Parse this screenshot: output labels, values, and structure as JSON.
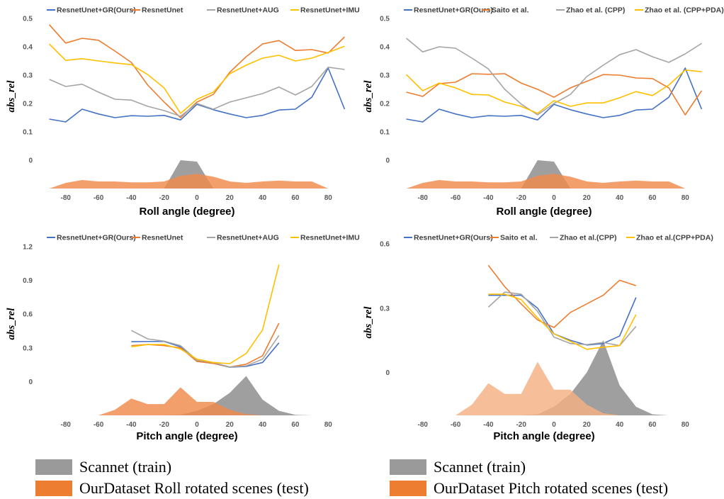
{
  "colors": {
    "blue": "#4472C4",
    "orange": "#ED7D31",
    "gray": "#A5A5A5",
    "yellow": "#FFC000",
    "scannet_fill": "#9a9a9a",
    "ourdata_fill": "#F08A4B",
    "ourdata_fill_light": "#F4B183"
  },
  "bottom_legend": {
    "left": [
      {
        "label": "Scannet (train)",
        "color": "#9a9a9a"
      },
      {
        "label": "OurDataset Roll rotated scenes (test)",
        "color": "#ED7D31"
      }
    ],
    "right": [
      {
        "label": "Scannet (train)",
        "color": "#9a9a9a"
      },
      {
        "label": "OurDataset Pitch rotated scenes (test)",
        "color": "#ED7D31"
      }
    ]
  },
  "chart_data": [
    {
      "type": "line",
      "xlabel": "Roll angle (degree)",
      "ylabel": "abs_rel",
      "xlim": [
        -95,
        95
      ],
      "ylim": [
        -0.1,
        0.5
      ],
      "x_ticks": [
        "-80",
        "-60",
        "-40",
        "-20",
        "0",
        "20",
        "40",
        "60",
        "80"
      ],
      "y_ticks": [
        "0",
        "0.1",
        "0.2",
        "0.3",
        "0.4",
        "0.5"
      ],
      "legend": "top",
      "series": [
        {
          "name": "ResnetUnet+GR(Ours)",
          "color": "#4472C4",
          "x": [
            -90,
            -80,
            -70,
            -60,
            -50,
            -40,
            -30,
            -20,
            -10,
            0,
            10,
            20,
            30,
            40,
            50,
            60,
            70,
            80,
            90
          ],
          "values": [
            0.145,
            0.135,
            0.18,
            0.163,
            0.15,
            0.157,
            0.155,
            0.158,
            0.142,
            0.197,
            0.178,
            0.163,
            0.15,
            0.158,
            0.177,
            0.18,
            0.222,
            0.325,
            0.18
          ]
        },
        {
          "name": "ResnetUnet",
          "color": "#ED7D31",
          "x": [
            -90,
            -80,
            -70,
            -60,
            -50,
            -40,
            -30,
            -20,
            -10,
            0,
            10,
            20,
            30,
            40,
            50,
            60,
            70,
            80,
            90
          ],
          "values": [
            0.478,
            0.413,
            0.43,
            0.423,
            0.385,
            0.345,
            0.265,
            0.205,
            0.15,
            0.205,
            0.232,
            0.31,
            0.365,
            0.41,
            0.422,
            0.387,
            0.39,
            0.378,
            0.435
          ]
        },
        {
          "name": "ResnetUnet+AUG",
          "color": "#A5A5A5",
          "x": [
            -90,
            -80,
            -70,
            -60,
            -50,
            -40,
            -30,
            -20,
            -10,
            0,
            10,
            20,
            30,
            40,
            50,
            60,
            70,
            80,
            90
          ],
          "values": [
            0.285,
            0.26,
            0.268,
            0.24,
            0.215,
            0.212,
            0.19,
            0.175,
            0.155,
            0.2,
            0.18,
            0.205,
            0.22,
            0.235,
            0.258,
            0.23,
            0.26,
            0.328,
            0.32
          ]
        },
        {
          "name": "ResnetUnet+IMU",
          "color": "#FFC000",
          "x": [
            -90,
            -80,
            -70,
            -60,
            -50,
            -40,
            -30,
            -20,
            -10,
            0,
            10,
            20,
            30,
            40,
            50,
            60,
            70,
            80,
            90
          ],
          "values": [
            0.41,
            0.352,
            0.358,
            0.35,
            0.343,
            0.337,
            0.302,
            0.255,
            0.165,
            0.215,
            0.24,
            0.305,
            0.335,
            0.36,
            0.37,
            0.35,
            0.36,
            0.38,
            0.402
          ]
        }
      ],
      "histograms": [
        {
          "name": "Scannet (train)",
          "color": "#9a9a9a",
          "x": [
            -20,
            -10,
            0,
            10
          ],
          "values": [
            0.0,
            0.1,
            0.095,
            0.0
          ]
        },
        {
          "name": "OurDataset Roll rotated scenes (test)",
          "color": "#F08A4B",
          "x": [
            -90,
            -80,
            -70,
            -60,
            -50,
            -40,
            -30,
            -20,
            -10,
            0,
            10,
            20,
            30,
            40,
            50,
            60,
            70,
            80
          ],
          "values": [
            0.0,
            0.02,
            0.03,
            0.025,
            0.025,
            0.022,
            0.022,
            0.025,
            0.045,
            0.052,
            0.042,
            0.025,
            0.02,
            0.025,
            0.028,
            0.025,
            0.025,
            0.0
          ]
        }
      ]
    },
    {
      "type": "line",
      "xlabel": "Roll angle (degree)",
      "ylabel": "abs_rel",
      "xlim": [
        -95,
        95
      ],
      "ylim": [
        -0.1,
        0.5
      ],
      "x_ticks": [
        "-80",
        "-60",
        "-40",
        "-20",
        "0",
        "20",
        "40",
        "60",
        "80"
      ],
      "y_ticks": [
        "0",
        "0.1",
        "0.2",
        "0.3",
        "0.4",
        "0.5"
      ],
      "legend": "top",
      "series": [
        {
          "name": "ResnetUnet+GR(Ours)",
          "color": "#4472C4",
          "x": [
            -90,
            -80,
            -70,
            -60,
            -50,
            -40,
            -30,
            -20,
            -10,
            0,
            10,
            20,
            30,
            40,
            50,
            60,
            70,
            80,
            90
          ],
          "values": [
            0.145,
            0.135,
            0.18,
            0.163,
            0.15,
            0.157,
            0.155,
            0.158,
            0.142,
            0.197,
            0.178,
            0.163,
            0.15,
            0.158,
            0.177,
            0.18,
            0.222,
            0.325,
            0.18
          ]
        },
        {
          "name": "Saito et al.",
          "color": "#ED7D31",
          "x": [
            -90,
            -80,
            -70,
            -60,
            -50,
            -40,
            -30,
            -20,
            -10,
            0,
            10,
            20,
            30,
            40,
            50,
            60,
            70,
            80,
            90
          ],
          "values": [
            0.24,
            0.225,
            0.27,
            0.275,
            0.305,
            0.303,
            0.305,
            0.272,
            0.25,
            0.222,
            0.255,
            0.278,
            0.302,
            0.3,
            0.29,
            0.288,
            0.255,
            0.16,
            0.245
          ]
        },
        {
          "name": "Zhao et al. (CPP)",
          "color": "#A5A5A5",
          "x": [
            -90,
            -80,
            -70,
            -60,
            -50,
            -40,
            -30,
            -20,
            -10,
            0,
            10,
            20,
            30,
            40,
            50,
            60,
            70,
            80,
            90
          ],
          "values": [
            0.43,
            0.382,
            0.4,
            0.395,
            0.36,
            0.322,
            0.25,
            0.198,
            0.16,
            0.2,
            0.232,
            0.295,
            0.335,
            0.372,
            0.39,
            0.365,
            0.345,
            0.375,
            0.412
          ]
        },
        {
          "name": "Zhao et al. (CPP+PDA)",
          "color": "#FFC000",
          "x": [
            -90,
            -80,
            -70,
            -60,
            -50,
            -40,
            -30,
            -20,
            -10,
            0,
            10,
            20,
            30,
            40,
            50,
            60,
            70,
            80,
            90
          ],
          "values": [
            0.302,
            0.245,
            0.272,
            0.255,
            0.232,
            0.23,
            0.205,
            0.19,
            0.165,
            0.21,
            0.19,
            0.202,
            0.202,
            0.22,
            0.242,
            0.228,
            0.265,
            0.318,
            0.312
          ]
        }
      ],
      "histograms": [
        {
          "name": "Scannet (train)",
          "color": "#9a9a9a",
          "x": [
            -20,
            -10,
            0,
            10
          ],
          "values": [
            0.0,
            0.1,
            0.095,
            0.0
          ]
        },
        {
          "name": "OurDataset Roll rotated scenes (test)",
          "color": "#F08A4B",
          "x": [
            -90,
            -80,
            -70,
            -60,
            -50,
            -40,
            -30,
            -20,
            -10,
            0,
            10,
            20,
            30,
            40,
            50,
            60,
            70,
            80
          ],
          "values": [
            0.0,
            0.02,
            0.03,
            0.025,
            0.025,
            0.022,
            0.022,
            0.025,
            0.045,
            0.052,
            0.042,
            0.025,
            0.02,
            0.025,
            0.028,
            0.025,
            0.025,
            0.0
          ]
        }
      ]
    },
    {
      "type": "line",
      "xlabel": "Pitch angle (degree)",
      "ylabel": "abs_rel",
      "xlim": [
        -95,
        95
      ],
      "ylim": [
        -0.3,
        1.2
      ],
      "x_ticks": [
        "-80",
        "-60",
        "-40",
        "-20",
        "0",
        "20",
        "40",
        "60",
        "80"
      ],
      "y_ticks": [
        "0",
        "0.3",
        "0.6",
        "0.9",
        "1.2"
      ],
      "legend": "top",
      "series": [
        {
          "name": "ResnetUnet+GR(Ours)",
          "color": "#4472C4",
          "x": [
            -40,
            -30,
            -20,
            -10,
            0,
            10,
            20,
            30,
            40,
            50
          ],
          "values": [
            0.355,
            0.357,
            0.357,
            0.31,
            0.18,
            0.163,
            0.128,
            0.135,
            0.17,
            0.345
          ]
        },
        {
          "name": "ResnetUnet",
          "color": "#ED7D31",
          "x": [
            -40,
            -30,
            -20,
            -10,
            0,
            10,
            20,
            30,
            40,
            50
          ],
          "values": [
            0.32,
            0.33,
            0.32,
            0.3,
            0.18,
            0.162,
            0.13,
            0.155,
            0.23,
            0.52
          ]
        },
        {
          "name": "ResnetUnet+AUG",
          "color": "#A5A5A5",
          "x": [
            -40,
            -30,
            -20,
            -10,
            0,
            10,
            20,
            30,
            40,
            50
          ],
          "values": [
            0.455,
            0.38,
            0.36,
            0.32,
            0.19,
            0.17,
            0.13,
            0.14,
            0.2,
            0.41
          ]
        },
        {
          "name": "ResnetUnet+IMU",
          "color": "#FFC000",
          "x": [
            -40,
            -30,
            -20,
            -10,
            0,
            10,
            20,
            30,
            40,
            50
          ],
          "values": [
            0.31,
            0.33,
            0.33,
            0.29,
            0.2,
            0.17,
            0.16,
            0.25,
            0.46,
            1.04
          ]
        }
      ],
      "histograms": [
        {
          "name": "Scannet (train)",
          "color": "#9a9a9a",
          "x": [
            -90,
            -80,
            -70,
            -60,
            -50,
            -40,
            -30,
            -20,
            -10,
            0,
            10,
            20,
            30,
            40,
            50,
            60,
            70,
            80
          ],
          "values": [
            0,
            0,
            0,
            0,
            0,
            0,
            0,
            0.0,
            0.005,
            0.04,
            0.1,
            0.2,
            0.35,
            0.14,
            0.04,
            0.005,
            0,
            0
          ]
        },
        {
          "name": "OurDataset Pitch rotated scenes (test)",
          "color": "#F08A4B",
          "x": [
            -90,
            -80,
            -70,
            -60,
            -50,
            -40,
            -30,
            -20,
            -10,
            0,
            10,
            20,
            30,
            40,
            50,
            60,
            70,
            80
          ],
          "values": [
            0,
            0,
            0,
            0,
            0.05,
            0.15,
            0.1,
            0.1,
            0.25,
            0.12,
            0.12,
            0.05,
            0.01,
            0,
            0,
            0,
            0,
            0
          ]
        }
      ]
    },
    {
      "type": "line",
      "xlabel": "Pitch angle (degree)",
      "ylabel": "abs_rel",
      "xlim": [
        -95,
        95
      ],
      "ylim": [
        -0.2,
        0.6
      ],
      "x_ticks": [
        "-80",
        "-60",
        "-40",
        "-20",
        "0",
        "20",
        "40",
        "60",
        "80"
      ],
      "y_ticks": [
        "0",
        "0.3",
        "0.6"
      ],
      "legend": "top",
      "series": [
        {
          "name": "ResnetUnet+GR(Ours)",
          "color": "#4472C4",
          "x": [
            -40,
            -30,
            -20,
            -10,
            0,
            10,
            20,
            30,
            40,
            50
          ],
          "values": [
            0.36,
            0.36,
            0.36,
            0.3,
            0.18,
            0.15,
            0.128,
            0.135,
            0.17,
            0.35
          ]
        },
        {
          "name": "Saito et al.",
          "color": "#ED7D31",
          "x": [
            -40,
            -30,
            -20,
            -10,
            0,
            10,
            20,
            30,
            40,
            50
          ],
          "values": [
            0.5,
            0.4,
            0.32,
            0.245,
            0.21,
            0.28,
            0.32,
            0.36,
            0.43,
            0.405
          ]
        },
        {
          "name": "Zhao et al.(CPP)",
          "color": "#A5A5A5",
          "x": [
            -40,
            -30,
            -20,
            -10,
            0,
            10,
            20,
            30,
            40,
            50
          ],
          "values": [
            0.305,
            0.375,
            0.365,
            0.285,
            0.165,
            0.135,
            0.13,
            0.14,
            0.125,
            0.215
          ]
        },
        {
          "name": "Zhao et al.(CPP+PDA)",
          "color": "#FFC000",
          "x": [
            -40,
            -30,
            -20,
            -10,
            0,
            10,
            20,
            30,
            40,
            50
          ],
          "values": [
            0.365,
            0.365,
            0.34,
            0.255,
            0.18,
            0.145,
            0.108,
            0.118,
            0.125,
            0.27
          ]
        }
      ],
      "histograms": [
        {
          "name": "Scannet (train)",
          "color": "#9a9a9a",
          "x": [
            -90,
            -80,
            -70,
            -60,
            -50,
            -40,
            -30,
            -20,
            -10,
            0,
            10,
            20,
            30,
            40,
            50,
            60,
            70,
            80
          ],
          "values": [
            0,
            0,
            0,
            0,
            0,
            0,
            0,
            0.0,
            0.005,
            0.04,
            0.1,
            0.2,
            0.35,
            0.14,
            0.04,
            0.005,
            0,
            0
          ]
        },
        {
          "name": "OurDataset Pitch rotated scenes (test)",
          "color": "#F4B183",
          "x": [
            -90,
            -80,
            -70,
            -60,
            -50,
            -40,
            -30,
            -20,
            -10,
            0,
            10,
            20,
            30,
            40,
            50,
            60,
            70,
            80
          ],
          "values": [
            0,
            0,
            0,
            0,
            0.05,
            0.15,
            0.1,
            0.1,
            0.25,
            0.12,
            0.12,
            0.05,
            0.01,
            0,
            0,
            0,
            0,
            0
          ]
        }
      ]
    }
  ]
}
